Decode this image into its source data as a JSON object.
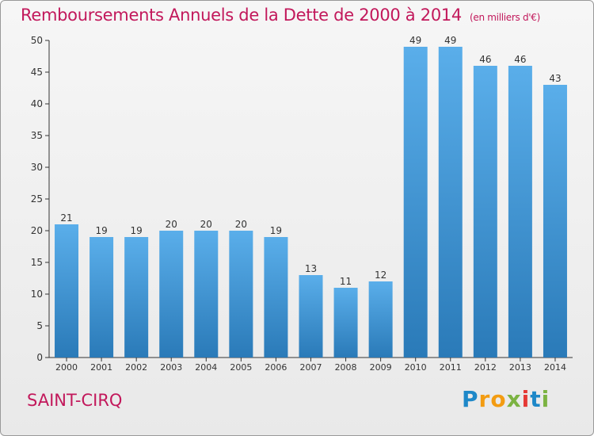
{
  "chart_data": {
    "type": "bar",
    "title": "Remboursements Annuels de la Dette de 2000 à 2014",
    "subtitle": "(en milliers d'€)",
    "categories": [
      "2000",
      "2001",
      "2002",
      "2003",
      "2004",
      "2005",
      "2006",
      "2007",
      "2008",
      "2009",
      "2010",
      "2011",
      "2012",
      "2013",
      "2014"
    ],
    "values": [
      21,
      19,
      19,
      20,
      20,
      20,
      19,
      13,
      11,
      12,
      49,
      49,
      46,
      46,
      43
    ],
    "ylim": [
      0,
      50
    ],
    "yticks": [
      0,
      5,
      10,
      15,
      20,
      25,
      30,
      35,
      40,
      45,
      50
    ],
    "grid": false,
    "bar_color_top": "#5aaeea",
    "bar_color_bottom": "#2a7ab8"
  },
  "commune": "SAINT-CIRQ",
  "logo": {
    "text": "Proxiti",
    "letters": [
      {
        "ch": "P",
        "color": "#1e88c8"
      },
      {
        "ch": "r",
        "color": "#f39c12"
      },
      {
        "ch": "o",
        "color": "#f39c12"
      },
      {
        "ch": "x",
        "color": "#7cb342"
      },
      {
        "ch": "i",
        "color": "#e53935"
      },
      {
        "ch": "t",
        "color": "#1e88c8"
      },
      {
        "ch": "i",
        "color": "#7cb342"
      }
    ]
  }
}
